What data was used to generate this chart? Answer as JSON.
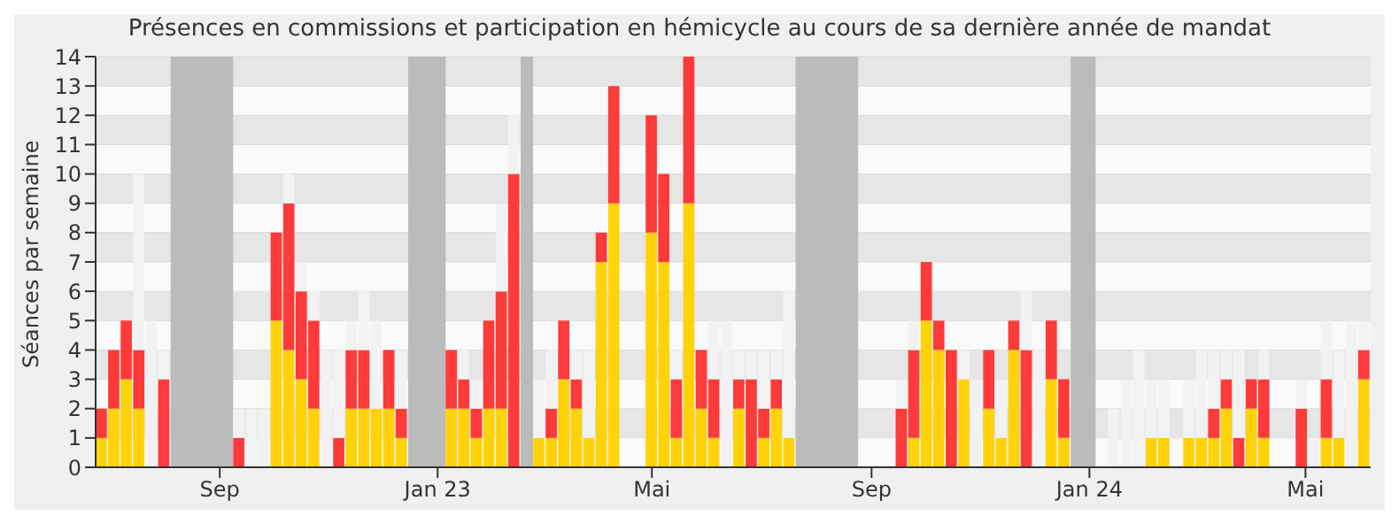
{
  "chart_data": {
    "type": "bar",
    "title": "Présences en commissions et participation en hémicycle au cours de sa dernière année de mandat",
    "ylabel": "Séances par semaine",
    "x": [
      "2022-06-27",
      "2022-07-04",
      "2022-07-11",
      "2022-07-18",
      "2022-07-25",
      "2022-08-01",
      "2022-08-08",
      "2022-08-15",
      "2022-08-22",
      "2022-08-29",
      "2022-09-05",
      "2022-09-12",
      "2022-09-19",
      "2022-09-26",
      "2022-10-03",
      "2022-10-10",
      "2022-10-17",
      "2022-10-24",
      "2022-10-31",
      "2022-11-07",
      "2022-11-14",
      "2022-11-21",
      "2022-11-28",
      "2022-12-05",
      "2022-12-12",
      "2022-12-19",
      "2022-12-26",
      "2023-01-02",
      "2023-01-09",
      "2023-01-16",
      "2023-01-23",
      "2023-01-30",
      "2023-02-06",
      "2023-02-13",
      "2023-02-20",
      "2023-02-27",
      "2023-03-06",
      "2023-03-13",
      "2023-03-20",
      "2023-03-27",
      "2023-04-03",
      "2023-04-10",
      "2023-04-17",
      "2023-04-24",
      "2023-05-01",
      "2023-05-08",
      "2023-05-15",
      "2023-05-22",
      "2023-05-29",
      "2023-06-05",
      "2023-06-12",
      "2023-06-19",
      "2023-06-26",
      "2023-07-03",
      "2023-07-10",
      "2023-07-17",
      "2023-07-24",
      "2023-07-31",
      "2023-08-07",
      "2023-08-14",
      "2023-08-21",
      "2023-08-28",
      "2023-09-04",
      "2023-09-11",
      "2023-09-18",
      "2023-09-25",
      "2023-10-02",
      "2023-10-09",
      "2023-10-16",
      "2023-10-23",
      "2023-10-30",
      "2023-11-06",
      "2023-11-13",
      "2023-11-20",
      "2023-11-27",
      "2023-12-04",
      "2023-12-11",
      "2023-12-18",
      "2023-12-25",
      "2024-01-01",
      "2024-01-08",
      "2024-01-15",
      "2024-01-22",
      "2024-01-29",
      "2024-02-05",
      "2024-02-12",
      "2024-02-19",
      "2024-02-26",
      "2024-03-04",
      "2024-03-11",
      "2024-03-18",
      "2024-03-25",
      "2024-04-01",
      "2024-04-08",
      "2024-04-15",
      "2024-04-22",
      "2024-04-29",
      "2024-05-06",
      "2024-05-13",
      "2024-05-20",
      "2024-05-27",
      "2024-06-03"
    ],
    "series": [
      {
        "color": "#ffd20a",
        "values": [
          1,
          2,
          3,
          2,
          0,
          0,
          0,
          0,
          0,
          0,
          0,
          0,
          0,
          0,
          5,
          4,
          3,
          2,
          0,
          0,
          2,
          2,
          2,
          2,
          1,
          0,
          0,
          0,
          2,
          2,
          1,
          2,
          2,
          0,
          0,
          1,
          1,
          3,
          2,
          1,
          7,
          9,
          0,
          0,
          8,
          7,
          1,
          9,
          2,
          1,
          0,
          2,
          0,
          1,
          2,
          1,
          0,
          0,
          0,
          0,
          0,
          0,
          0,
          0,
          0,
          1,
          5,
          4,
          0,
          3,
          0,
          2,
          1,
          4,
          0,
          0,
          3,
          1,
          0,
          0,
          0,
          0,
          0,
          0,
          1,
          1,
          0,
          1,
          1,
          1,
          2,
          0,
          2,
          1,
          0,
          0,
          0,
          0,
          1,
          1,
          0,
          3
        ]
      },
      {
        "color": "#ff3a3a",
        "values": [
          1,
          2,
          2,
          2,
          0,
          3,
          0,
          0,
          0,
          0,
          0,
          1,
          0,
          0,
          3,
          5,
          3,
          3,
          0,
          1,
          2,
          2,
          0,
          2,
          1,
          0,
          0,
          0,
          2,
          1,
          1,
          3,
          4,
          10,
          0,
          0,
          1,
          2,
          1,
          0,
          1,
          4,
          0,
          0,
          4,
          3,
          2,
          5,
          2,
          2,
          0,
          1,
          3,
          1,
          1,
          0,
          0,
          0,
          0,
          0,
          0,
          0,
          0,
          0,
          2,
          3,
          2,
          1,
          4,
          0,
          0,
          2,
          0,
          1,
          4,
          0,
          2,
          2,
          0,
          0,
          0,
          0,
          0,
          0,
          0,
          0,
          0,
          0,
          0,
          1,
          1,
          1,
          1,
          2,
          0,
          0,
          2,
          0,
          2,
          0,
          0,
          1
        ]
      },
      {
        "color": "#f2f2f2",
        "values": [
          null,
          null,
          null,
          6,
          5,
          1,
          null,
          null,
          null,
          null,
          null,
          1,
          2,
          2,
          null,
          1,
          1,
          1,
          4,
          3,
          1,
          2,
          3,
          null,
          2,
          null,
          null,
          null,
          null,
          1,
          1,
          null,
          3,
          2,
          null,
          2,
          2,
          null,
          1,
          3,
          null,
          null,
          null,
          null,
          null,
          null,
          1,
          null,
          null,
          2,
          5,
          1,
          1,
          2,
          1,
          5,
          null,
          null,
          null,
          null,
          null,
          null,
          null,
          null,
          1,
          1,
          null,
          null,
          null,
          1,
          3,
          null,
          2,
          null,
          2,
          4,
          null,
          null,
          null,
          null,
          null,
          2,
          3,
          4,
          2,
          2,
          null,
          2,
          3,
          2,
          1,
          3,
          null,
          1,
          null,
          null,
          1,
          1,
          2,
          3,
          5,
          1
        ]
      }
    ],
    "stacked": true,
    "xlim": [
      "2022-06-23T12:00",
      "2024-06-06T12:00"
    ],
    "xticks": [
      {
        "value": "2022-09-01",
        "label": "Sep"
      },
      {
        "value": "2023-01-01",
        "label": "Jan 23"
      },
      {
        "value": "2023-05-01",
        "label": "Mai"
      },
      {
        "value": "2023-09-01",
        "label": "Sep"
      },
      {
        "value": "2024-01-01",
        "label": "Jan 24"
      },
      {
        "value": "2024-05-01",
        "label": "Mai"
      }
    ],
    "ylim": [
      0,
      14
    ],
    "yticks": [
      0,
      1,
      2,
      3,
      4,
      5,
      6,
      7,
      8,
      9,
      10,
      11,
      12,
      13,
      14
    ],
    "grid": "y",
    "bands": [
      {
        "axis": "x",
        "from": "2022-08-04T12:00",
        "to": "2022-09-08T12:00",
        "color": "#bbbbbb"
      },
      {
        "axis": "x",
        "from": "2022-12-15T12:00",
        "to": "2023-01-05T12:00",
        "color": "#bbbbbb"
      },
      {
        "axis": "x",
        "from": "2023-02-16T12:00",
        "to": "2023-02-23T12:00",
        "color": "#bbbbbb"
      },
      {
        "axis": "x",
        "from": "2023-07-20T12:00",
        "to": "2023-08-24T12:00",
        "color": "#bbbbbb"
      },
      {
        "axis": "x",
        "from": "2023-12-21T12:00",
        "to": "2024-01-04T12:00",
        "color": "#bbbbbb"
      }
    ]
  }
}
